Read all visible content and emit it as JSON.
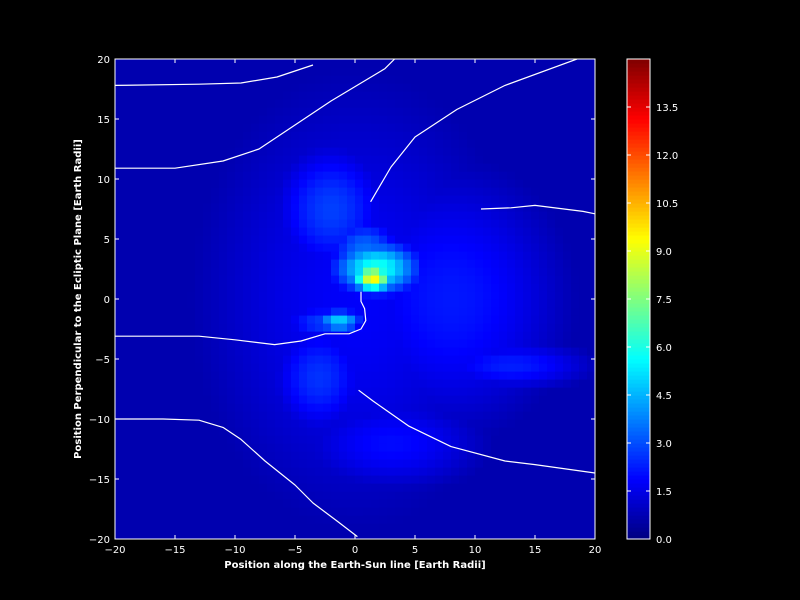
{
  "chart_data": {
    "type": "heatmap",
    "title": "",
    "xlabel": "Position along the Earth-Sun line [Earth Radii]",
    "ylabel": "Position Perpendicular to the Ecliptic Plane [Earth Radii]",
    "xlim": [
      -20,
      20
    ],
    "ylim": [
      -20,
      20
    ],
    "x_ticks": [
      -20,
      -15,
      -10,
      -5,
      0,
      5,
      10,
      15,
      20
    ],
    "y_ticks": [
      -20,
      -15,
      -10,
      -5,
      0,
      5,
      10,
      15,
      20
    ],
    "x_tick_labels": [
      "−20",
      "−15",
      "−10",
      "−5",
      "0",
      "5",
      "10",
      "15",
      "20"
    ],
    "y_tick_labels": [
      "−20",
      "−15",
      "−10",
      "−5",
      "0",
      "5",
      "10",
      "15",
      "20"
    ],
    "colormap": "jet",
    "colorbar": {
      "range": [
        0.0,
        15.0
      ],
      "ticks": [
        0.0,
        1.5,
        3.0,
        4.5,
        6.0,
        7.5,
        9.0,
        10.5,
        12.0,
        13.5
      ],
      "tick_labels": [
        "0.0",
        "1.5",
        "3.0",
        "4.5",
        "6.0",
        "7.5",
        "9.0",
        "10.5",
        "12.0",
        "13.5"
      ]
    },
    "background_level": 0.7,
    "hotspots": [
      {
        "x": 1.5,
        "y": 1.8,
        "value": 9.5,
        "sx": 1.2,
        "sy": 0.8
      },
      {
        "x": 1.8,
        "y": 2.6,
        "value": 6.0,
        "sx": 2.6,
        "sy": 1.6
      },
      {
        "x": 0.8,
        "y": 4.2,
        "value": 3.5,
        "sx": 2.2,
        "sy": 1.8
      },
      {
        "x": -1.3,
        "y": -1.8,
        "value": 5.0,
        "sx": 1.4,
        "sy": 0.7
      },
      {
        "x": -2.5,
        "y": -1.9,
        "value": 2.8,
        "sx": 2.6,
        "sy": 1.1
      },
      {
        "x": -2.0,
        "y": 7.5,
        "value": 2.8,
        "sx": 3.5,
        "sy": 4.0
      },
      {
        "x": -3.0,
        "y": -6.5,
        "value": 2.6,
        "sx": 3.0,
        "sy": 3.5
      },
      {
        "x": 13.0,
        "y": -5.5,
        "value": 2.3,
        "sx": 5.0,
        "sy": 1.5
      },
      {
        "x": 8.0,
        "y": 0.0,
        "value": 2.2,
        "sx": 7.0,
        "sy": 8.0
      },
      {
        "x": 3.0,
        "y": -12.0,
        "value": 2.0,
        "sx": 6.0,
        "sy": 3.0
      },
      {
        "x": 0.0,
        "y": 0.0,
        "value": 1.8,
        "sx": 10.0,
        "sy": 14.0
      }
    ],
    "field_lines": [
      [
        [
          -20,
          17.8
        ],
        [
          -13,
          17.9
        ],
        [
          -9.5,
          18.0
        ],
        [
          -6.5,
          18.5
        ],
        [
          -3.5,
          19.5
        ]
      ],
      [
        [
          -20,
          10.9
        ],
        [
          -15,
          10.9
        ],
        [
          -11,
          11.5
        ],
        [
          -8,
          12.5
        ],
        [
          -5,
          14.5
        ],
        [
          -2,
          16.5
        ],
        [
          2.5,
          19.2
        ],
        [
          3.3,
          20
        ]
      ],
      [
        [
          1.3,
          8.1
        ],
        [
          3,
          11
        ],
        [
          5,
          13.5
        ],
        [
          8.5,
          15.8
        ],
        [
          12.5,
          17.8
        ],
        [
          18.5,
          20
        ]
      ],
      [
        [
          10.5,
          7.5
        ],
        [
          13,
          7.6
        ],
        [
          15,
          7.8
        ],
        [
          19,
          7.3
        ],
        [
          20,
          7.1
        ]
      ],
      [
        [
          0.5,
          0.6
        ],
        [
          0.5,
          -0.2
        ],
        [
          0.8,
          -0.8
        ],
        [
          0.9,
          -1.8
        ],
        [
          0.5,
          -2.5
        ],
        [
          -0.5,
          -2.9
        ],
        [
          -2.5,
          -2.9
        ],
        [
          -4.5,
          -3.5
        ],
        [
          -6.7,
          -3.8
        ],
        [
          -10,
          -3.4
        ],
        [
          -13,
          -3.1
        ],
        [
          -20,
          -3.1
        ]
      ],
      [
        [
          0.3,
          -7.6
        ],
        [
          1.5,
          -8.5
        ],
        [
          4.5,
          -10.6
        ],
        [
          8,
          -12.3
        ],
        [
          12.5,
          -13.5
        ],
        [
          15,
          -13.8
        ],
        [
          20,
          -14.5
        ]
      ],
      [
        [
          -20,
          -10
        ],
        [
          -16,
          -10
        ],
        [
          -13,
          -10.1
        ],
        [
          -11,
          -10.7
        ],
        [
          -9.5,
          -11.7
        ],
        [
          -7.5,
          -13.5
        ],
        [
          -5,
          -15.5
        ],
        [
          -3.5,
          -17
        ],
        [
          -1.5,
          -18.5
        ],
        [
          0.2,
          -19.8
        ]
      ]
    ]
  }
}
